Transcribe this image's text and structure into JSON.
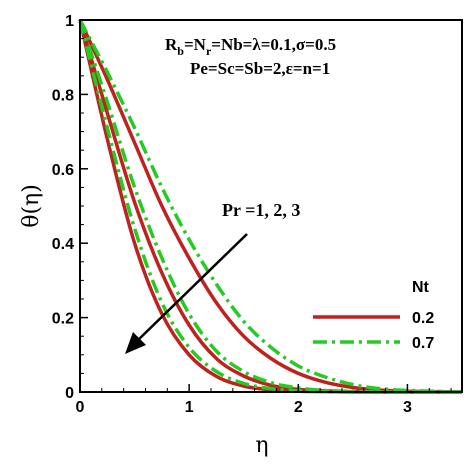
{
  "chart_data": {
    "type": "line",
    "xlabel": "η",
    "ylabel": "θ(η)",
    "xlim": [
      0,
      3.5
    ],
    "ylim": [
      0,
      1
    ],
    "x_ticks": [
      0,
      1,
      2,
      3
    ],
    "x_tick_labels": [
      "0",
      "1",
      "2",
      "3"
    ],
    "y_ticks": [
      0,
      0.2,
      0.4,
      0.6,
      0.8,
      1
    ],
    "y_tick_labels": [
      "0",
      "0.2",
      "0.4",
      "0.6",
      "0.8",
      "1"
    ],
    "grid": false,
    "legend": {
      "title": "Nt",
      "position": "lower-right",
      "entries": [
        {
          "label": "0.2",
          "color": "#c0201e",
          "style": "solid"
        },
        {
          "label": "0.7",
          "color": "#22cc22",
          "style": "dash-dot"
        }
      ]
    },
    "annotations": {
      "params_line1": "R",
      "params_line1_sub": "b",
      "params_line1_mid": "=N",
      "params_line1_sub2": "r",
      "params_line1_rest": "=Nb=λ=0.1,σ=0.5",
      "params_line2": "Pe=Sc=Sb=2,ε=n=1",
      "arrow_label": "Pr =1, 2, 3"
    },
    "x": [
      0,
      0.25,
      0.5,
      0.75,
      1,
      1.25,
      1.5,
      1.75,
      2,
      2.25,
      2.5,
      2.75,
      3,
      3.25,
      3.5
    ],
    "series": [
      {
        "nt": "0.2",
        "pr": "1",
        "color": "#c0201e",
        "style": "solid",
        "values": [
          1.0,
          0.84,
          0.67,
          0.5,
          0.36,
          0.24,
          0.15,
          0.09,
          0.05,
          0.026,
          0.012,
          0.005,
          0.002,
          0.001,
          0.0
        ]
      },
      {
        "nt": "0.2",
        "pr": "2",
        "color": "#c0201e",
        "style": "solid",
        "values": [
          1.0,
          0.75,
          0.51,
          0.32,
          0.18,
          0.09,
          0.043,
          0.018,
          0.007,
          0.003,
          0.001,
          0.0,
          0.0,
          0.0,
          0.0
        ]
      },
      {
        "nt": "0.2",
        "pr": "3",
        "color": "#c0201e",
        "style": "solid",
        "values": [
          1.0,
          0.68,
          0.4,
          0.21,
          0.1,
          0.042,
          0.016,
          0.006,
          0.002,
          0.001,
          0.0,
          0.0,
          0.0,
          0.0,
          0.0
        ]
      },
      {
        "nt": "0.7",
        "pr": "1",
        "color": "#22cc22",
        "style": "dash-dot",
        "values": [
          1.0,
          0.86,
          0.71,
          0.55,
          0.41,
          0.29,
          0.19,
          0.12,
          0.07,
          0.04,
          0.02,
          0.009,
          0.004,
          0.002,
          0.0
        ]
      },
      {
        "nt": "0.7",
        "pr": "2",
        "color": "#22cc22",
        "style": "dash-dot",
        "values": [
          1.0,
          0.78,
          0.55,
          0.36,
          0.21,
          0.11,
          0.055,
          0.025,
          0.011,
          0.004,
          0.002,
          0.0,
          0.0,
          0.0,
          0.0
        ]
      },
      {
        "nt": "0.7",
        "pr": "3",
        "color": "#22cc22",
        "style": "dash-dot",
        "values": [
          1.0,
          0.71,
          0.44,
          0.24,
          0.12,
          0.055,
          0.023,
          0.009,
          0.003,
          0.001,
          0.0,
          0.0,
          0.0,
          0.0,
          0.0
        ]
      }
    ]
  }
}
